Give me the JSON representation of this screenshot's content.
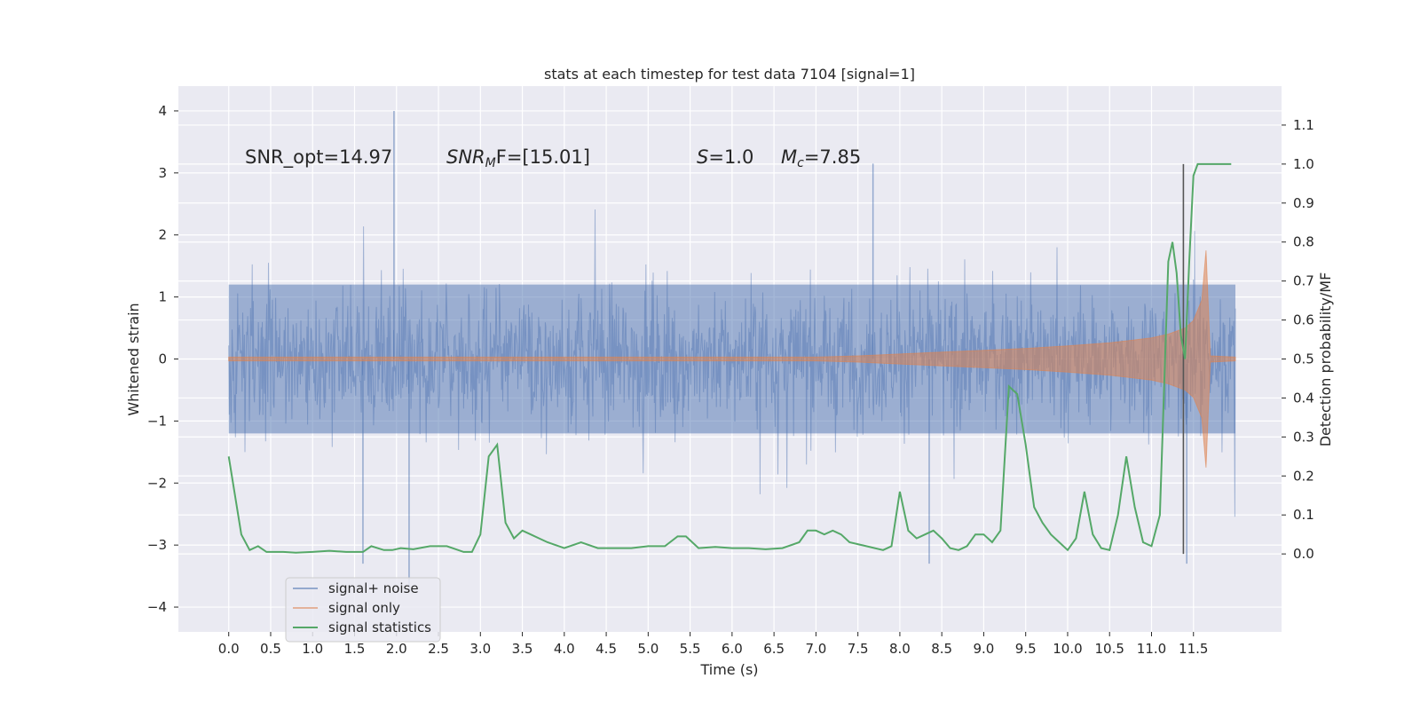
{
  "chart_data": {
    "type": "line",
    "title": "stats at each timestep for test data 7104 [signal=1]",
    "xlabel": "Time (s)",
    "ylabel": "Whitened strain",
    "y2label": "Detection probability/MF",
    "xlim": [
      -0.6,
      12.55
    ],
    "ylim": [
      -4.4,
      4.4
    ],
    "y2lim": [
      -0.2,
      1.2
    ],
    "grid": true,
    "x_ticks": [
      "0.0",
      "0.5",
      "1.0",
      "1.5",
      "2.0",
      "2.5",
      "3.0",
      "3.5",
      "4.0",
      "4.5",
      "5.0",
      "5.5",
      "6.0",
      "6.5",
      "7.0",
      "7.5",
      "8.0",
      "8.5",
      "9.0",
      "9.5",
      "10.0",
      "10.5",
      "11.0",
      "11.5"
    ],
    "y_ticks": [
      "4",
      "3",
      "2",
      "1",
      "0",
      "−1",
      "−2",
      "−3",
      "−4"
    ],
    "y2_ticks": [
      "1.1",
      "1.0",
      "0.9",
      "0.8",
      "0.7",
      "0.6",
      "0.5",
      "0.4",
      "0.3",
      "0.2",
      "0.1",
      "0.0"
    ],
    "annotations": {
      "snr_opt": "SNR_opt=14.97",
      "snr_mf_symbol": "SNR",
      "snr_mf_sub": "M",
      "snr_mf_rest": "F=[15.01]",
      "s_symbol": "S",
      "s_value": "=1.0",
      "mc_symbol": "M",
      "mc_sub": "c",
      "mc_value": "=7.85"
    },
    "legend": {
      "position": "lower-left",
      "entries": [
        "signal+ noise",
        "signal only",
        "signal statistics"
      ]
    },
    "marker_line_x": 11.38,
    "series": [
      {
        "name": "signal+ noise",
        "color": "#4c72b0",
        "description_values": "dense noise trace",
        "x_range": [
          0.0,
          12.0
        ],
        "band_envelope": 1.2,
        "peak_envelope": 1.8,
        "extreme_spikes": [
          [
            1.97,
            4.0
          ],
          [
            2.15,
            -3.7
          ],
          [
            1.6,
            -3.3
          ],
          [
            8.35,
            -3.3
          ],
          [
            11.42,
            -3.3
          ],
          [
            7.68,
            3.15
          ]
        ]
      },
      {
        "name": "signal only",
        "color": "#dd8452",
        "x": [
          0.0,
          7.0,
          7.5,
          8.0,
          8.5,
          9.0,
          9.5,
          10.0,
          10.5,
          11.0,
          11.2,
          11.4,
          11.5,
          11.6,
          11.65,
          11.7,
          12.0
        ],
        "amplitude": [
          0.03,
          0.03,
          0.05,
          0.08,
          0.11,
          0.14,
          0.17,
          0.21,
          0.26,
          0.34,
          0.4,
          0.5,
          0.62,
          0.95,
          1.75,
          0.05,
          0.03
        ]
      },
      {
        "name": "signal statistics",
        "color": "#55a868",
        "axis": "right",
        "x": [
          0.0,
          0.15,
          0.25,
          0.35,
          0.45,
          0.55,
          0.65,
          0.8,
          1.0,
          1.2,
          1.4,
          1.6,
          1.7,
          1.85,
          1.95,
          2.05,
          2.2,
          2.4,
          2.6,
          2.8,
          2.9,
          3.0,
          3.1,
          3.2,
          3.3,
          3.4,
          3.5,
          3.6,
          3.7,
          3.8,
          4.0,
          4.2,
          4.4,
          4.6,
          4.8,
          5.0,
          5.2,
          5.35,
          5.45,
          5.6,
          5.8,
          6.0,
          6.2,
          6.4,
          6.6,
          6.8,
          6.9,
          7.0,
          7.1,
          7.2,
          7.3,
          7.4,
          7.6,
          7.8,
          7.9,
          8.0,
          8.1,
          8.2,
          8.3,
          8.4,
          8.5,
          8.6,
          8.7,
          8.8,
          8.9,
          9.0,
          9.1,
          9.2,
          9.3,
          9.4,
          9.5,
          9.6,
          9.7,
          9.8,
          9.9,
          10.0,
          10.1,
          10.2,
          10.3,
          10.4,
          10.5,
          10.6,
          10.7,
          10.8,
          10.9,
          11.0,
          11.1,
          11.2,
          11.25,
          11.3,
          11.35,
          11.4,
          11.45,
          11.5,
          11.55,
          11.65,
          11.8,
          11.95
        ],
        "values": [
          0.25,
          0.05,
          0.01,
          0.02,
          0.005,
          0.005,
          0.005,
          0.003,
          0.005,
          0.008,
          0.005,
          0.005,
          0.02,
          0.01,
          0.01,
          0.015,
          0.012,
          0.02,
          0.02,
          0.005,
          0.005,
          0.05,
          0.25,
          0.28,
          0.08,
          0.04,
          0.06,
          0.05,
          0.04,
          0.03,
          0.015,
          0.03,
          0.015,
          0.015,
          0.015,
          0.02,
          0.02,
          0.045,
          0.045,
          0.015,
          0.018,
          0.015,
          0.015,
          0.012,
          0.015,
          0.03,
          0.06,
          0.06,
          0.05,
          0.06,
          0.05,
          0.03,
          0.02,
          0.01,
          0.02,
          0.16,
          0.06,
          0.04,
          0.05,
          0.06,
          0.04,
          0.015,
          0.01,
          0.02,
          0.05,
          0.05,
          0.03,
          0.06,
          0.43,
          0.41,
          0.28,
          0.12,
          0.08,
          0.05,
          0.03,
          0.01,
          0.04,
          0.16,
          0.05,
          0.015,
          0.01,
          0.1,
          0.25,
          0.12,
          0.03,
          0.02,
          0.1,
          0.75,
          0.8,
          0.72,
          0.56,
          0.5,
          0.75,
          0.97,
          1.0,
          1.0,
          1.0,
          1.0
        ]
      }
    ]
  }
}
